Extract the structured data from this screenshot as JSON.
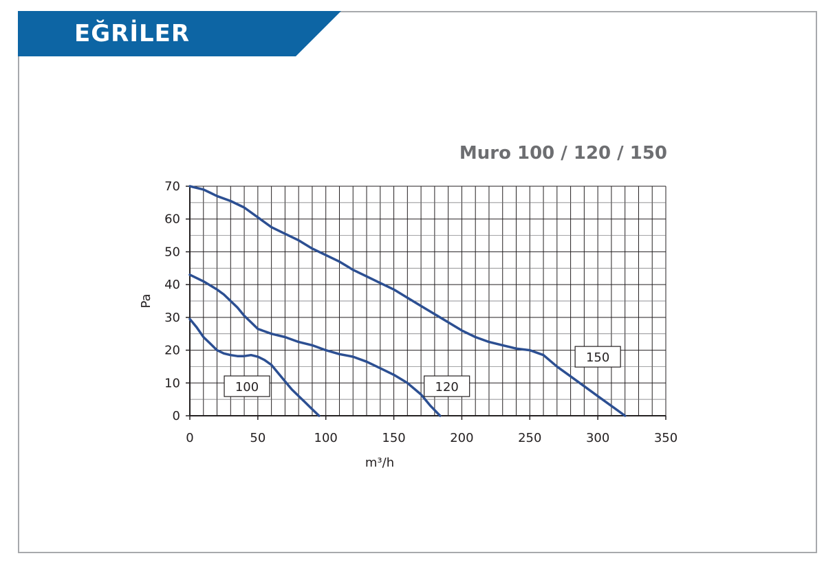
{
  "header": {
    "title": "EĞRİLER",
    "band_color": "#0d65a4"
  },
  "chart_data": {
    "type": "line",
    "title": "Muro 100 /  120 / 150",
    "xlabel": "m³/h",
    "ylabel": "Pa",
    "xlim": [
      0,
      350
    ],
    "ylim": [
      0,
      70
    ],
    "x_ticks": [
      0,
      50,
      100,
      150,
      200,
      250,
      300,
      350
    ],
    "y_ticks": [
      0,
      10,
      20,
      30,
      40,
      50,
      60,
      70
    ],
    "minor_x_step": 10,
    "major_y_step": 10,
    "minor_y_step": 5,
    "grid": true,
    "line_color": "#2c4f92",
    "series": [
      {
        "name": "100",
        "points": [
          [
            0,
            29.5
          ],
          [
            5,
            27
          ],
          [
            10,
            24
          ],
          [
            15,
            22
          ],
          [
            20,
            20
          ],
          [
            25,
            19
          ],
          [
            30,
            18.5
          ],
          [
            35,
            18.2
          ],
          [
            40,
            18.2
          ],
          [
            45,
            18.5
          ],
          [
            50,
            18
          ],
          [
            55,
            17
          ],
          [
            60,
            15.5
          ],
          [
            65,
            13
          ],
          [
            70,
            10.5
          ],
          [
            75,
            8
          ],
          [
            80,
            6
          ],
          [
            85,
            4
          ],
          [
            90,
            2
          ],
          [
            95,
            0
          ]
        ],
        "label_at": [
          42,
          9
        ]
      },
      {
        "name": "120",
        "points": [
          [
            0,
            43
          ],
          [
            10,
            41
          ],
          [
            20,
            38.5
          ],
          [
            25,
            37
          ],
          [
            30,
            35
          ],
          [
            35,
            33
          ],
          [
            40,
            30.5
          ],
          [
            45,
            28.5
          ],
          [
            50,
            26.5
          ],
          [
            60,
            25
          ],
          [
            70,
            24
          ],
          [
            80,
            22.5
          ],
          [
            90,
            21.5
          ],
          [
            100,
            20
          ],
          [
            110,
            18.8
          ],
          [
            120,
            18
          ],
          [
            130,
            16.5
          ],
          [
            140,
            14.5
          ],
          [
            150,
            12.5
          ],
          [
            160,
            10
          ],
          [
            170,
            6.5
          ],
          [
            177,
            3
          ],
          [
            184,
            0
          ]
        ],
        "label_at": [
          189,
          9
        ]
      },
      {
        "name": "150",
        "points": [
          [
            0,
            70
          ],
          [
            10,
            69
          ],
          [
            15,
            68
          ],
          [
            20,
            67
          ],
          [
            30,
            65.5
          ],
          [
            40,
            63.5
          ],
          [
            50,
            60.5
          ],
          [
            60,
            57.5
          ],
          [
            70,
            55.5
          ],
          [
            80,
            53.5
          ],
          [
            90,
            51
          ],
          [
            100,
            49
          ],
          [
            110,
            47
          ],
          [
            120,
            44.5
          ],
          [
            130,
            42.5
          ],
          [
            140,
            40.5
          ],
          [
            150,
            38.5
          ],
          [
            160,
            36
          ],
          [
            170,
            33.5
          ],
          [
            180,
            31
          ],
          [
            190,
            28.5
          ],
          [
            200,
            26
          ],
          [
            210,
            24
          ],
          [
            220,
            22.5
          ],
          [
            230,
            21.5
          ],
          [
            240,
            20.5
          ],
          [
            250,
            20
          ],
          [
            260,
            18.5
          ],
          [
            270,
            15
          ],
          [
            280,
            12
          ],
          [
            290,
            9
          ],
          [
            300,
            6
          ],
          [
            310,
            3
          ],
          [
            320,
            0
          ]
        ],
        "label_at": [
          300,
          18
        ]
      }
    ]
  }
}
